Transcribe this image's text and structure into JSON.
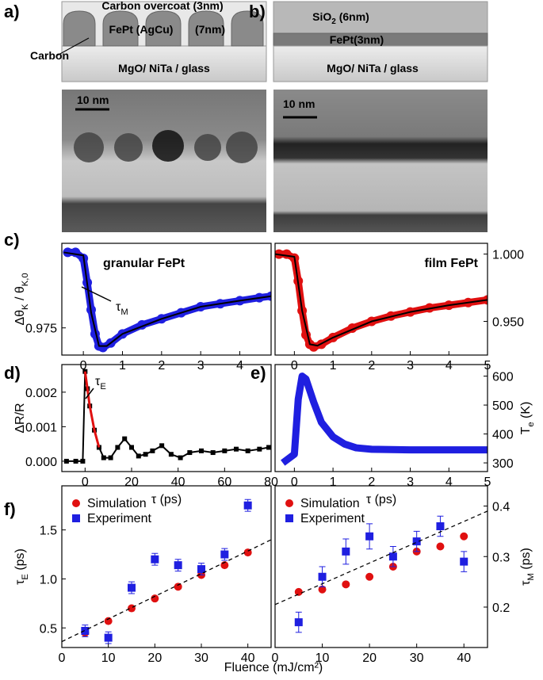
{
  "panel_labels": [
    "a)",
    "b)",
    "c)",
    "d)",
    "e)",
    "f)"
  ],
  "schematic_a": {
    "overcoat": "Carbon overcoat (3nm)",
    "grains": "FePt (AgCu)",
    "thickness": "(7nm)",
    "carbon": "Carbon",
    "substrate": "MgO/ NiTa / glass"
  },
  "schematic_b": {
    "oxide": [
      "SiO",
      "2",
      " (6nm)"
    ],
    "film": "FePt(3nm)",
    "substrate": "MgO/ NiTa / glass"
  },
  "tem": {
    "scale_a": "10 nm",
    "scale_b": "10 nm"
  },
  "fluence_label": "Fluence (mJ/cm²)",
  "chart_data": [
    {
      "type": "line",
      "title": "granular FePt",
      "ylabel": [
        "Δθ",
        "K",
        " / θ",
        "K,0"
      ],
      "annotation": [
        "τ",
        "M"
      ],
      "xlim": [
        -0.55,
        4.8
      ],
      "xticks": [
        0,
        1,
        2,
        3,
        4
      ],
      "ylim": [
        0.966,
        1.003
      ],
      "yticks": [
        0.975
      ],
      "yaxis": "left",
      "series": [
        {
          "color": "#1f1fe0",
          "marker": "circle",
          "line": "thick",
          "x": [
            -0.4,
            -0.2,
            0,
            0.1,
            0.2,
            0.3,
            0.4,
            0.5,
            0.7,
            1,
            1.5,
            2,
            2.5,
            3,
            3.5,
            4,
            4.5,
            4.8
          ],
          "values": [
            1.0,
            1.0,
            0.998,
            0.99,
            0.981,
            0.973,
            0.969,
            0.9685,
            0.97,
            0.973,
            0.976,
            0.978,
            0.98,
            0.982,
            0.983,
            0.984,
            0.985,
            0.9855
          ]
        },
        {
          "color": "#000000",
          "marker": null,
          "line": "solid",
          "x": [
            -0.5,
            0,
            0.2,
            0.4,
            0.6,
            1,
            2,
            3,
            4,
            4.8
          ],
          "values": [
            1.0,
            0.999,
            0.98,
            0.969,
            0.969,
            0.973,
            0.978,
            0.982,
            0.984,
            0.9855
          ]
        }
      ]
    },
    {
      "type": "line",
      "title": "film FePt",
      "xlim": [
        -0.5,
        5
      ],
      "xticks": [
        0,
        1,
        2,
        3,
        4,
        5
      ],
      "ylim": [
        0.925,
        1.008
      ],
      "yticks": [
        {
          "value": 0.95,
          "label": "0.950"
        },
        {
          "value": 1.0,
          "label": "1.000"
        }
      ],
      "yaxis": "right",
      "series": [
        {
          "color": "#e01010",
          "marker": "circle",
          "line": "thick",
          "x": [
            -0.4,
            -0.2,
            0,
            0.1,
            0.2,
            0.3,
            0.4,
            0.5,
            0.7,
            1,
            1.5,
            2,
            2.5,
            3,
            3.5,
            4,
            4.5,
            5
          ],
          "values": [
            1.0,
            1.0,
            0.997,
            0.98,
            0.958,
            0.94,
            0.933,
            0.931,
            0.933,
            0.938,
            0.945,
            0.95,
            0.954,
            0.957,
            0.96,
            0.962,
            0.964,
            0.966
          ]
        },
        {
          "color": "#000000",
          "marker": null,
          "line": "solid",
          "x": [
            -0.5,
            0,
            0.2,
            0.4,
            0.6,
            1,
            2,
            3,
            4,
            5
          ],
          "values": [
            1.0,
            0.998,
            0.958,
            0.933,
            0.932,
            0.938,
            0.95,
            0.957,
            0.962,
            0.966
          ]
        }
      ]
    },
    {
      "type": "line",
      "ylabel": "ΔR/R",
      "annotation": [
        "τ",
        "E"
      ],
      "xlabel": "τ (ps)",
      "xlim": [
        -10,
        80
      ],
      "xticks": [
        0,
        20,
        40,
        60,
        80
      ],
      "ylim": [
        -0.0003,
        0.0028
      ],
      "yticks": [
        {
          "value": 0,
          "label": "0.000"
        },
        {
          "value": 0.001,
          "label": "0.001"
        },
        {
          "value": 0.002,
          "label": "0.002"
        }
      ],
      "yaxis": "left",
      "series": [
        {
          "color": "#000000",
          "marker": "square",
          "line": "solid",
          "x": [
            -8,
            -4,
            -1,
            0,
            1,
            2,
            4,
            6,
            8,
            11,
            14,
            17,
            20,
            23,
            26,
            29,
            33,
            37,
            41,
            45,
            50,
            55,
            60,
            65,
            70,
            75,
            79
          ],
          "values": [
            0,
            0,
            0,
            0.0026,
            0.0021,
            0.0016,
            0.0009,
            0.0004,
            0.0001,
            0.0001,
            0.0004,
            0.00065,
            0.0004,
            0.00015,
            0.0002,
            0.0003,
            0.00045,
            0.0002,
            0.0001,
            0.00025,
            0.0003,
            0.00025,
            0.0003,
            0.00035,
            0.0003,
            0.00035,
            0.0004
          ]
        },
        {
          "color": "#e01010",
          "marker": null,
          "line": "fit",
          "x": [
            0,
            1,
            2,
            4,
            6
          ],
          "values": [
            0.0026,
            0.0021,
            0.0016,
            0.0009,
            0.0004
          ]
        }
      ]
    },
    {
      "type": "line",
      "ylabel": [
        "T",
        "e",
        " (K)"
      ],
      "xlabel": "τ (ps)",
      "xlim": [
        -0.5,
        5
      ],
      "xticks": [
        0,
        1,
        2,
        3,
        4,
        5
      ],
      "ylim": [
        270,
        640
      ],
      "yticks": [
        300,
        400,
        500,
        600
      ],
      "yaxis": "right",
      "series": [
        {
          "color": "#1f1fe0",
          "marker": null,
          "line": "thick",
          "x": [
            -0.3,
            0,
            0.1,
            0.2,
            0.3,
            0.5,
            0.7,
            1,
            1.3,
            1.6,
            2,
            3,
            4,
            5
          ],
          "values": [
            300,
            330,
            520,
            600,
            590,
            510,
            440,
            390,
            365,
            352,
            347,
            345,
            345,
            345
          ]
        }
      ]
    },
    {
      "type": "scatter",
      "ylabel": [
        "τ",
        "E",
        " (ps)"
      ],
      "xlim": [
        0,
        45
      ],
      "xticks": [
        0,
        10,
        20,
        30,
        40
      ],
      "ylim": [
        0.3,
        1.95
      ],
      "yticks": [
        {
          "value": 0.5,
          "label": "0.5"
        },
        {
          "value": 1.0,
          "label": "1.0"
        },
        {
          "value": 1.5,
          "label": "1.5"
        }
      ],
      "yaxis": "left",
      "series": [
        {
          "name": "Simulation",
          "color": "#e01010",
          "marker": "circle",
          "x": [
            5,
            10,
            15,
            20,
            25,
            30,
            35,
            40
          ],
          "values": [
            0.45,
            0.57,
            0.7,
            0.8,
            0.92,
            1.04,
            1.14,
            1.27
          ]
        },
        {
          "name": "Experiment",
          "color": "#1f1fe0",
          "marker": "square",
          "x": [
            5,
            10,
            15,
            20,
            25,
            30,
            35,
            40
          ],
          "values": [
            0.47,
            0.4,
            0.91,
            1.2,
            1.14,
            1.1,
            1.25,
            1.75
          ],
          "errors": [
            0.06,
            0.06,
            0.06,
            0.06,
            0.06,
            0.06,
            0.06,
            0.06
          ]
        },
        {
          "color": "#000000",
          "marker": null,
          "line": "dashed",
          "x": [
            0,
            45
          ],
          "values": [
            0.36,
            1.4
          ]
        }
      ]
    },
    {
      "type": "scatter",
      "ylabel": [
        "τ",
        "M",
        " (ps)"
      ],
      "xlim": [
        0,
        45
      ],
      "xticks": [
        0,
        10,
        20,
        30,
        40
      ],
      "ylim": [
        0.12,
        0.44
      ],
      "yticks": [
        0.2,
        0.3,
        0.4
      ],
      "yaxis": "right",
      "series": [
        {
          "name": "Simulation",
          "color": "#e01010",
          "marker": "circle",
          "x": [
            5,
            10,
            15,
            20,
            25,
            30,
            35,
            40
          ],
          "values": [
            0.23,
            0.235,
            0.245,
            0.26,
            0.28,
            0.31,
            0.32,
            0.34
          ]
        },
        {
          "name": "Experiment",
          "color": "#1f1fe0",
          "marker": "square",
          "x": [
            5,
            10,
            15,
            20,
            25,
            30,
            35,
            40
          ],
          "values": [
            0.17,
            0.26,
            0.31,
            0.34,
            0.3,
            0.33,
            0.36,
            0.29
          ],
          "errors": [
            0.02,
            0.02,
            0.025,
            0.025,
            0.02,
            0.02,
            0.02,
            0.02
          ]
        },
        {
          "color": "#000000",
          "marker": null,
          "line": "dashed",
          "x": [
            0,
            45
          ],
          "values": [
            0.205,
            0.39
          ]
        }
      ]
    }
  ]
}
